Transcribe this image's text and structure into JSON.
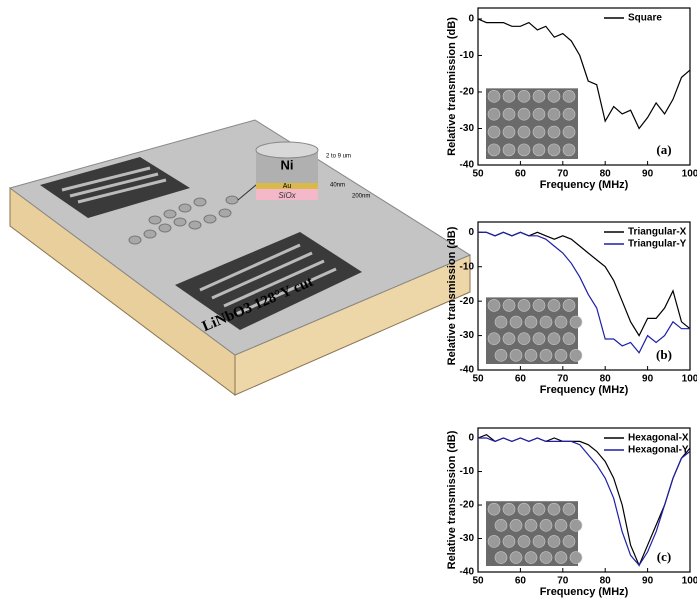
{
  "diagram": {
    "substrate": "LiNbO3 128°Y cut",
    "pillar_top": "Ni",
    "layer_middle": "Au",
    "layer_bottom": "SiOx",
    "height_note": "2 to 9 um",
    "au_note": "40nm",
    "siox_note": "200nm"
  },
  "chart_data": [
    {
      "type": "line",
      "xlabel": "Frequency (MHz)",
      "ylabel": "Relative transmission (dB)",
      "panel_label": "(a)",
      "x": [
        50,
        52,
        54,
        56,
        58,
        60,
        62,
        64,
        66,
        68,
        70,
        72,
        74,
        76,
        78,
        80,
        82,
        84,
        86,
        88,
        90,
        92,
        94,
        96,
        98,
        100
      ],
      "series": [
        {
          "name": "Square",
          "color": "#000000",
          "values": [
            0,
            -1,
            -1,
            -1,
            -2,
            -2,
            -1,
            -3,
            -2,
            -5,
            -4,
            -6,
            -10,
            -17,
            -18,
            -28,
            -24,
            -26,
            -25,
            -30,
            -27,
            -23,
            -26,
            -22,
            -16,
            -14
          ]
        }
      ],
      "xlim": [
        50,
        100
      ],
      "xticks": [
        50,
        60,
        70,
        80,
        90,
        100
      ],
      "ylim": [
        -40,
        3
      ],
      "yticks": [
        0,
        -10,
        -20,
        -30,
        -40
      ],
      "legend": "upper-right"
    },
    {
      "type": "line",
      "xlabel": "Frequency (MHz)",
      "ylabel": "Relative transmission (dB)",
      "panel_label": "(b)",
      "x": [
        50,
        52,
        54,
        56,
        58,
        60,
        62,
        64,
        66,
        68,
        70,
        72,
        74,
        76,
        78,
        80,
        82,
        84,
        86,
        88,
        90,
        92,
        94,
        96,
        98,
        100
      ],
      "series": [
        {
          "name": "Triangular-X",
          "color": "#000000",
          "values": [
            0,
            0,
            -1,
            0,
            -1,
            0,
            -1,
            0,
            -1,
            -2,
            -1,
            -2,
            -4,
            -6,
            -8,
            -10,
            -14,
            -20,
            -26,
            -30,
            -25,
            -25,
            -22,
            -17,
            -26,
            -28
          ]
        },
        {
          "name": "Triangular-Y",
          "color": "#1f1fa8",
          "values": [
            0,
            0,
            -1,
            0,
            -1,
            0,
            -1,
            -1,
            -2,
            -4,
            -6,
            -9,
            -13,
            -18,
            -22,
            -31,
            -31,
            -33,
            -32,
            -35,
            -30,
            -32,
            -30,
            -26,
            -28,
            -28
          ]
        }
      ],
      "xlim": [
        50,
        100
      ],
      "xticks": [
        50,
        60,
        70,
        80,
        90,
        100
      ],
      "ylim": [
        -40,
        3
      ],
      "yticks": [
        0,
        -10,
        -20,
        -30,
        -40
      ],
      "legend": "upper-right"
    },
    {
      "type": "line",
      "xlabel": "Frequency (MHz)",
      "ylabel": "Relative transmission (dB)",
      "panel_label": "(c)",
      "x": [
        50,
        52,
        54,
        56,
        58,
        60,
        62,
        64,
        66,
        68,
        70,
        72,
        74,
        76,
        78,
        80,
        82,
        84,
        86,
        88,
        90,
        92,
        94,
        96,
        98,
        100
      ],
      "series": [
        {
          "name": "Hexagonal-X",
          "color": "#000000",
          "values": [
            0,
            1,
            -1,
            0,
            -1,
            0,
            -1,
            0,
            -1,
            0,
            -1,
            -1,
            -1,
            -2,
            -4,
            -7,
            -12,
            -20,
            -32,
            -38,
            -32,
            -26,
            -20,
            -12,
            -6,
            -3
          ]
        },
        {
          "name": "Hexagonal-Y",
          "color": "#1f1fa8",
          "values": [
            0,
            0,
            -1,
            0,
            -1,
            0,
            -1,
            0,
            -1,
            -1,
            -1,
            -1,
            -2,
            -5,
            -8,
            -12,
            -18,
            -28,
            -35,
            -38,
            -34,
            -28,
            -20,
            -12,
            -6,
            -4
          ]
        }
      ],
      "xlim": [
        50,
        100
      ],
      "xticks": [
        50,
        60,
        70,
        80,
        90,
        100
      ],
      "ylim": [
        -40,
        3
      ],
      "yticks": [
        0,
        -10,
        -20,
        -30,
        -40
      ],
      "legend": "upper-right"
    }
  ]
}
